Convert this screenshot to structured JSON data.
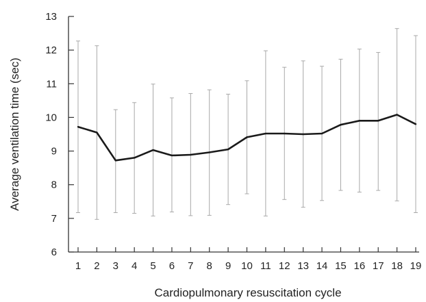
{
  "chart_data": {
    "type": "line",
    "xlabel": "Cardiopulmonary resuscitation cycle",
    "ylabel": "Average ventilation time (sec)",
    "x": [
      1,
      2,
      3,
      4,
      5,
      6,
      7,
      8,
      9,
      10,
      11,
      12,
      13,
      14,
      15,
      16,
      17,
      18,
      19
    ],
    "xlim": [
      1,
      19
    ],
    "ylim": [
      6,
      13
    ],
    "yticks": [
      6,
      7,
      8,
      9,
      10,
      11,
      12,
      13
    ],
    "grid": false,
    "series": [
      {
        "values": [
          9.72,
          9.55,
          8.72,
          8.8,
          9.03,
          8.87,
          8.89,
          8.96,
          9.05,
          9.41,
          9.52,
          9.52,
          9.5,
          9.52,
          9.78,
          9.9,
          9.9,
          10.08,
          9.8
        ],
        "error_low": [
          7.17,
          6.97,
          7.17,
          7.15,
          7.07,
          7.19,
          7.08,
          7.09,
          7.41,
          7.73,
          7.07,
          7.56,
          7.33,
          7.53,
          7.83,
          7.78,
          7.83,
          7.52,
          7.17
        ],
        "error_high": [
          12.27,
          12.13,
          10.23,
          10.44,
          10.99,
          10.58,
          10.71,
          10.82,
          10.69,
          11.09,
          11.98,
          11.49,
          11.68,
          11.52,
          11.73,
          12.03,
          11.93,
          12.64,
          12.43
        ],
        "color": "#1a1a1a",
        "error_color": "#a8a8a8"
      }
    ]
  }
}
